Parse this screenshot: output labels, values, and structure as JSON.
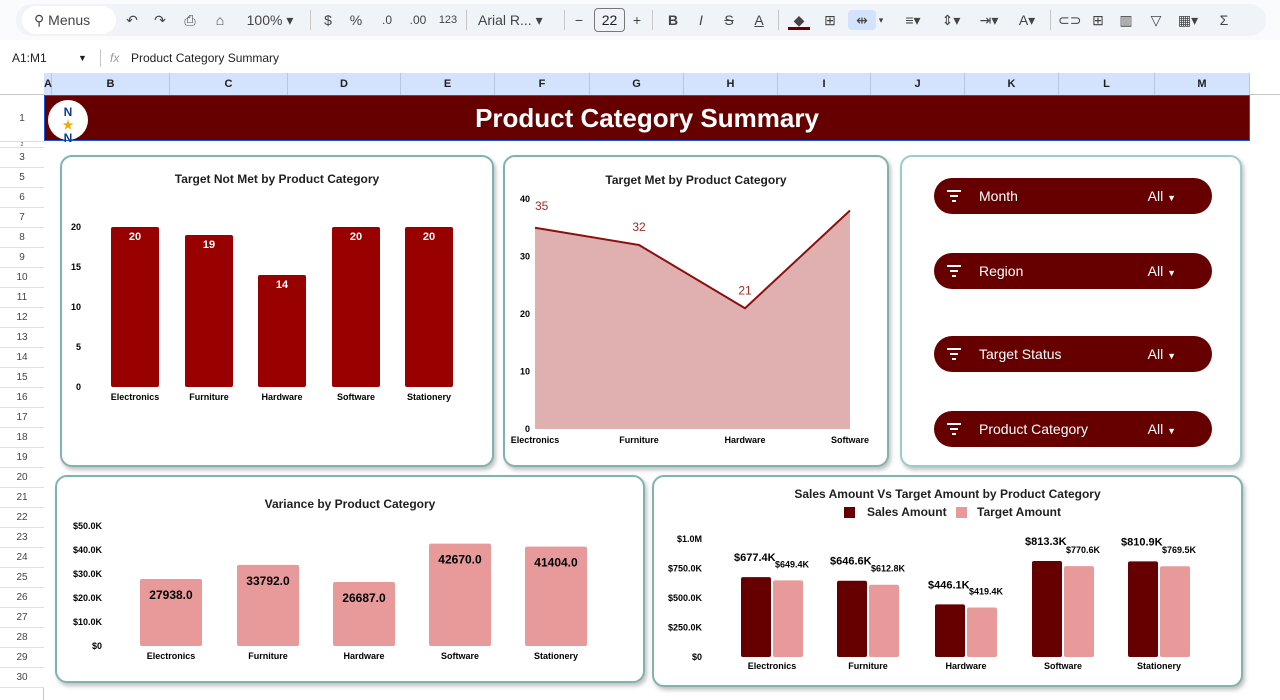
{
  "toolbar": {
    "search_label": "Menus",
    "zoom": "100%",
    "currency": "$",
    "percent": "%",
    "dec_decrease": ".0",
    "dec_increase": ".00",
    "number_format": "123",
    "font": "Arial R...",
    "font_size": "22",
    "minus": "−",
    "plus": "+"
  },
  "formula_bar": {
    "cell_ref": "A1:M1",
    "fx": "fx",
    "content": "Product Category Summary"
  },
  "columns": [
    "A",
    "B",
    "C",
    "D",
    "E",
    "F",
    "G",
    "H",
    "I",
    "J",
    "K",
    "L",
    "M"
  ],
  "rows": [
    "1",
    "2",
    "3",
    "5",
    "6",
    "7",
    "8",
    "9",
    "10",
    "11",
    "12",
    "13",
    "14",
    "15",
    "16",
    "17",
    "18",
    "19",
    "20",
    "21",
    "22",
    "23",
    "24",
    "25",
    "26",
    "27",
    "28",
    "29",
    "30"
  ],
  "header": {
    "title": "Product Category Summary",
    "logo_text": "N N"
  },
  "filters": [
    {
      "label": "Month",
      "value": "All"
    },
    {
      "label": "Region",
      "value": "All"
    },
    {
      "label": "Target Status",
      "value": "All"
    },
    {
      "label": "Product Category",
      "value": "All"
    }
  ],
  "colors": {
    "dark": "#660000",
    "bar": "#990000",
    "pink": "#e8999a",
    "area": "#e0b0b0",
    "line": "#8b1010"
  },
  "chart_data": [
    {
      "type": "bar",
      "title": "Target Not Met by Product Category",
      "categories": [
        "Electronics",
        "Furniture",
        "Hardware",
        "Software",
        "Stationery"
      ],
      "values": [
        20,
        19,
        14,
        20,
        20
      ],
      "yticks": [
        "0",
        "5",
        "10",
        "15",
        "20"
      ],
      "ylim": [
        0,
        20
      ]
    },
    {
      "type": "area",
      "title": "Target Met by Product Category",
      "categories": [
        "Electronics",
        "Furniture",
        "Hardware",
        "Software"
      ],
      "values": [
        35,
        32,
        21,
        38
      ],
      "labels": [
        "35",
        "32",
        "21",
        ""
      ],
      "yticks": [
        "0",
        "10",
        "20",
        "30",
        "40"
      ],
      "ylim": [
        0,
        40
      ]
    },
    {
      "type": "bar",
      "title": "Variance by Product Category",
      "categories": [
        "Electronics",
        "Furniture",
        "Hardware",
        "Software",
        "Stationery"
      ],
      "values": [
        27938.0,
        33792.0,
        26687.0,
        42670.0,
        41404.0
      ],
      "labels": [
        "27938.0",
        "33792.0",
        "26687.0",
        "42670.0",
        "41404.0"
      ],
      "yticks": [
        "$0",
        "$10.0K",
        "$20.0K",
        "$30.0K",
        "$40.0K",
        "$50.0K"
      ],
      "ylim": [
        0,
        50000
      ]
    },
    {
      "type": "bar",
      "title": "Sales Amount Vs Target Amount by Product Category",
      "categories": [
        "Electronics",
        "Furniture",
        "Hardware",
        "Software",
        "Stationery"
      ],
      "series": [
        {
          "name": "Sales Amount",
          "values": [
            677400,
            646600,
            446100,
            813300,
            810900
          ],
          "labels": [
            "$677.4K",
            "$646.6K",
            "$446.1K",
            "$813.3K",
            "$810.9K"
          ]
        },
        {
          "name": "Target Amount",
          "values": [
            649400,
            612800,
            419400,
            770600,
            769500
          ],
          "labels": [
            "$649.4K",
            "$612.8K",
            "$419.4K",
            "$770.6K",
            "$769.5K"
          ]
        }
      ],
      "yticks": [
        "$0",
        "$250.0K",
        "$500.0K",
        "$750.0K",
        "$1.0M"
      ],
      "ylim": [
        0,
        1000000
      ],
      "legend": "top"
    }
  ]
}
